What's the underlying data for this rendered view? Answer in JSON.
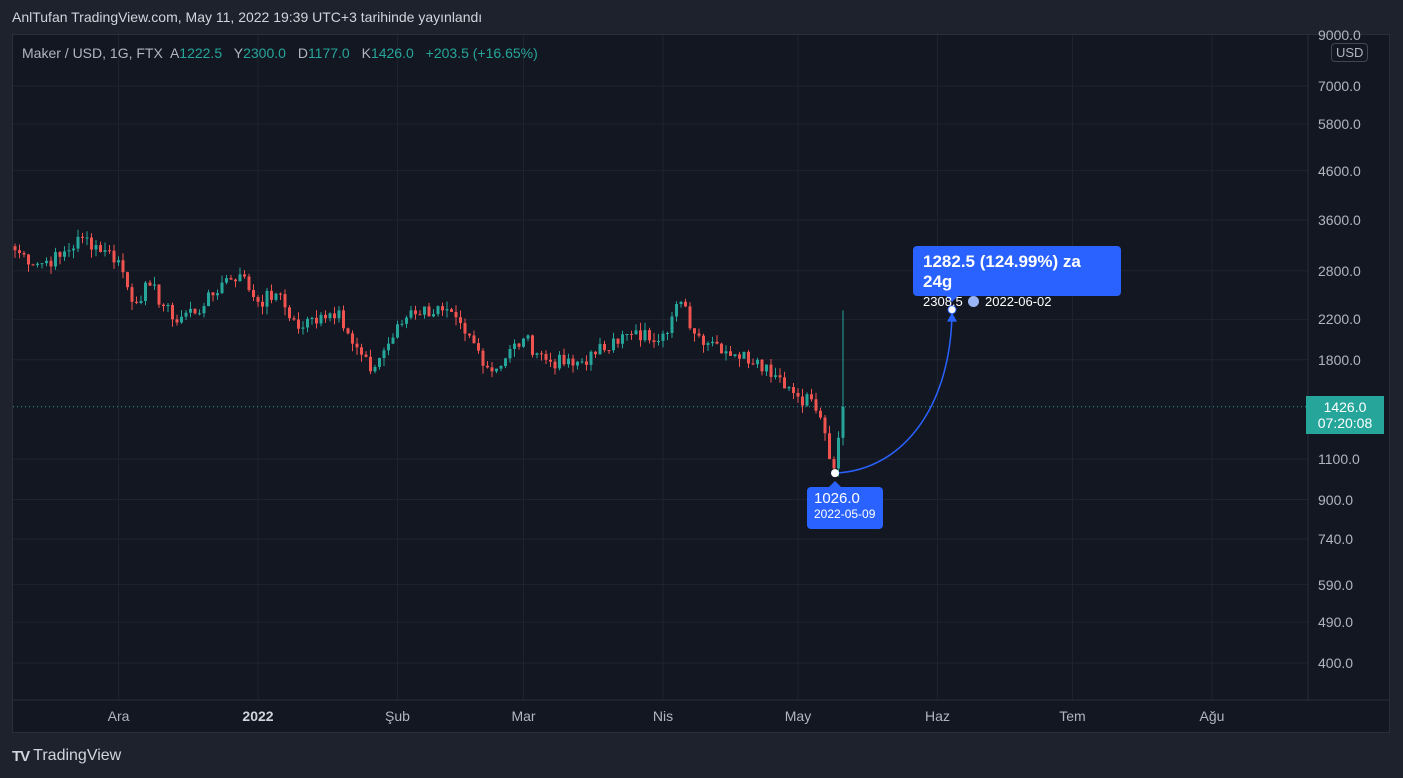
{
  "published": "AnlTufan TradingView.com, May 11, 2022 19:39 UTC+3 tarihinde yayınlandı",
  "legend": {
    "symbol": "Maker / USD, 1G, FTX",
    "o_label": "A",
    "o": "1222.5",
    "h_label": "Y",
    "h": "2300.0",
    "l_label": "D",
    "l": "1177.0",
    "c_label": "K",
    "c": "1426.0",
    "change": "+203.5 (+16.65%)"
  },
  "currency": "USD",
  "current_price": {
    "price": "1426.0",
    "countdown": "07:20:08"
  },
  "projection": {
    "headline": "1282.5 (124.99%) za 24g",
    "target": "2308.5",
    "target_date": "2022-06-02",
    "start_price": "1026.0",
    "start_date": "2022-05-09"
  },
  "brand": "TradingView",
  "colors": {
    "up": "#26a69a",
    "down": "#ef5350",
    "accent": "#2962ff"
  },
  "chart_data": {
    "type": "candlestick",
    "scale": "log",
    "y_ticks": [
      "9000.0",
      "7000.0",
      "5800.0",
      "4600.0",
      "3600.0",
      "2800.0",
      "2200.0",
      "1800.0",
      "1100.0",
      "900.0",
      "740.0",
      "590.0",
      "490.0",
      "400.0"
    ],
    "x_ticks": [
      {
        "label": "Ara",
        "day": 23
      },
      {
        "label": "2022",
        "day": 54,
        "bold": true
      },
      {
        "label": "Şub",
        "day": 85
      },
      {
        "label": "Mar",
        "day": 113
      },
      {
        "label": "Nis",
        "day": 144
      },
      {
        "label": "May",
        "day": 174
      },
      {
        "label": "Haz",
        "day": 205
      },
      {
        "label": "Tem",
        "day": 235
      },
      {
        "label": "Ağu",
        "day": 266
      }
    ],
    "approx_close_keypoints_day_price": [
      [
        0,
        3100
      ],
      [
        5,
        2900
      ],
      [
        10,
        3000
      ],
      [
        15,
        3300
      ],
      [
        20,
        3100
      ],
      [
        23,
        2950
      ],
      [
        26,
        2400
      ],
      [
        30,
        2600
      ],
      [
        35,
        2200
      ],
      [
        42,
        2350
      ],
      [
        47,
        2700
      ],
      [
        50,
        2750
      ],
      [
        54,
        2400
      ],
      [
        58,
        2500
      ],
      [
        63,
        2100
      ],
      [
        68,
        2250
      ],
      [
        72,
        2300
      ],
      [
        75,
        1950
      ],
      [
        79,
        1700
      ],
      [
        83,
        1950
      ],
      [
        88,
        2300
      ],
      [
        95,
        2300
      ],
      [
        100,
        2050
      ],
      [
        106,
        1700
      ],
      [
        113,
        2000
      ],
      [
        118,
        1800
      ],
      [
        124,
        1750
      ],
      [
        129,
        1850
      ],
      [
        133,
        2000
      ],
      [
        144,
        2050
      ],
      [
        148,
        2400
      ],
      [
        151,
        2050
      ],
      [
        156,
        1950
      ],
      [
        160,
        1850
      ],
      [
        165,
        1800
      ],
      [
        170,
        1650
      ],
      [
        174,
        1500
      ],
      [
        177,
        1480
      ],
      [
        180,
        1250
      ],
      [
        181,
        1100
      ],
      [
        182,
        1050
      ],
      [
        183,
        1222.5
      ],
      [
        184,
        1426
      ]
    ],
    "last_candle": {
      "o": 1222.5,
      "h": 2300,
      "l": 1177,
      "c": 1426
    },
    "projection_points": [
      {
        "day": 182,
        "price": 1026
      },
      {
        "day": 206,
        "price": 2308.5
      }
    ]
  }
}
